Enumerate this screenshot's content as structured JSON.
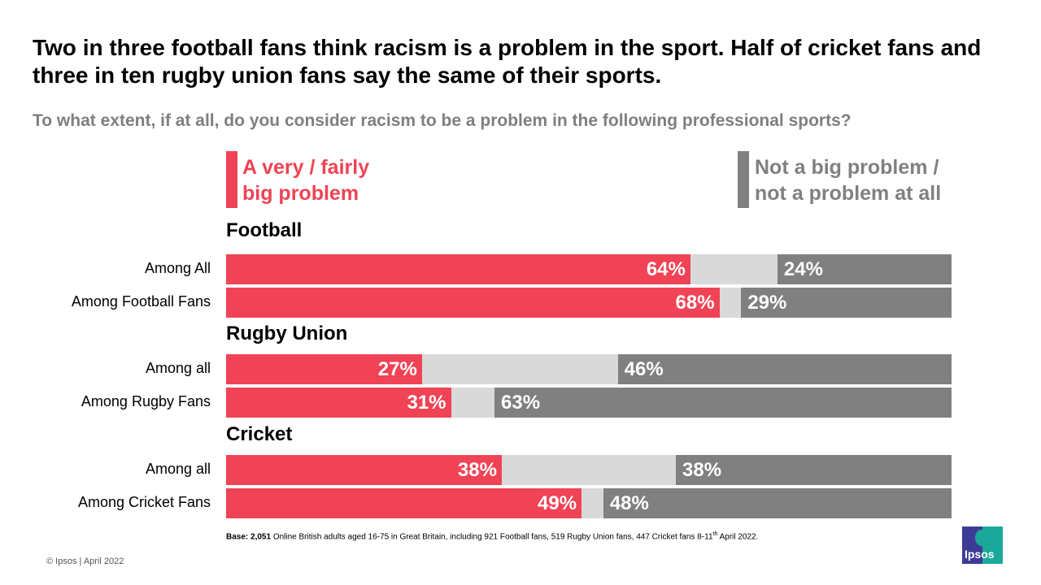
{
  "title": "Two in three football fans think racism is a problem in the sport. Half of cricket fans and three in ten rugby union fans say the same of their sports.",
  "subtitle": "To what extent, if at all, do you consider racism to be a problem in the following professional sports?",
  "chart_data": {
    "type": "bar",
    "orientation": "horizontal-stacked",
    "legend": [
      {
        "name": "A very / fairly big problem",
        "color": "#f04355",
        "placement": "left"
      },
      {
        "name": "Not a big problem / not a problem at all",
        "color": "#808080",
        "placement": "right"
      }
    ],
    "remainder_color": "#d9d9d9",
    "groups": [
      {
        "name": "Football",
        "rows": [
          {
            "label": "Among All",
            "problem": 64,
            "not_problem": 24
          },
          {
            "label": "Among Football Fans",
            "problem": 68,
            "not_problem": 29
          }
        ]
      },
      {
        "name": "Rugby Union",
        "rows": [
          {
            "label": "Among all",
            "problem": 27,
            "not_problem": 46
          },
          {
            "label": "Among Rugby Fans",
            "problem": 31,
            "not_problem": 63
          }
        ]
      },
      {
        "name": "Cricket",
        "rows": [
          {
            "label": "Among all",
            "problem": 38,
            "not_problem": 38
          },
          {
            "label": "Among Cricket Fans",
            "problem": 49,
            "not_problem": 48
          }
        ]
      }
    ],
    "xlim": [
      0,
      100
    ]
  },
  "legend_left_line1": "A very / fairly",
  "legend_left_line2": "big problem",
  "legend_right_line1": "Not a big problem /",
  "legend_right_line2": "not a problem at all",
  "base_bold": "Base: 2,051",
  "base_text": " Online British adults aged 16-75 in Great Britain, including 921 Football fans, 519 Rugby Union fans, 447 Cricket fans 8-11",
  "base_sup": "th",
  "base_end": " April 2022.",
  "copyright": "© Ipsos | April 2022",
  "logo": "Ipsos"
}
